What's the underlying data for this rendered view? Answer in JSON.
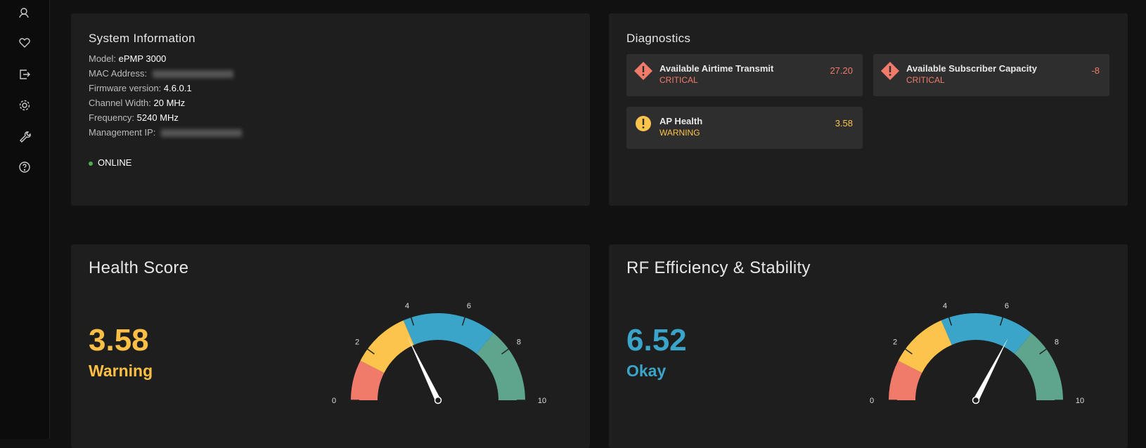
{
  "system_info": {
    "title": "System Information",
    "fields": [
      {
        "label": "Model:",
        "value": "ePMP 3000"
      },
      {
        "label": "MAC Address:",
        "value": null
      },
      {
        "label": "Firmware version:",
        "value": "4.6.0.1"
      },
      {
        "label": "Channel Width:",
        "value": "20 MHz"
      },
      {
        "label": "Frequency:",
        "value": "5240 MHz"
      },
      {
        "label": "Management IP:",
        "value": null
      }
    ],
    "status": "ONLINE"
  },
  "diagnostics": {
    "title": "Diagnostics",
    "items": [
      {
        "name": "Available Airtime Transmit",
        "status": "CRITICAL",
        "value": "27.20",
        "level": "critical"
      },
      {
        "name": "Available Subscriber Capacity",
        "status": "CRITICAL",
        "value": "-8",
        "level": "critical"
      },
      {
        "name": "AP Health",
        "status": "WARNING",
        "value": "3.58",
        "level": "warning"
      }
    ]
  },
  "gauges": [
    {
      "title": "Health Score",
      "value": 3.58,
      "status": "Warning",
      "color": "#fbbf45",
      "range": [
        0,
        10
      ],
      "ticks": [
        0,
        2,
        4,
        6,
        8,
        10
      ],
      "bands": [
        {
          "from": 0,
          "to": 1.5,
          "color": "#f07b6b"
        },
        {
          "from": 1.5,
          "to": 3.7,
          "color": "#fcc44c"
        },
        {
          "from": 3.7,
          "to": 7.2,
          "color": "#3aa5c9"
        },
        {
          "from": 7.2,
          "to": 10,
          "color": "#5fa58e"
        }
      ]
    },
    {
      "title": "RF Efficiency & Stability",
      "value": 6.52,
      "status": "Okay",
      "color": "#3aa5c9",
      "range": [
        0,
        10
      ],
      "ticks": [
        0,
        2,
        4,
        6,
        8,
        10
      ],
      "bands": [
        {
          "from": 0,
          "to": 1.5,
          "color": "#f07b6b"
        },
        {
          "from": 1.5,
          "to": 3.7,
          "color": "#fcc44c"
        },
        {
          "from": 3.7,
          "to": 7.2,
          "color": "#3aa5c9"
        },
        {
          "from": 7.2,
          "to": 10,
          "color": "#5fa58e"
        }
      ]
    }
  ]
}
